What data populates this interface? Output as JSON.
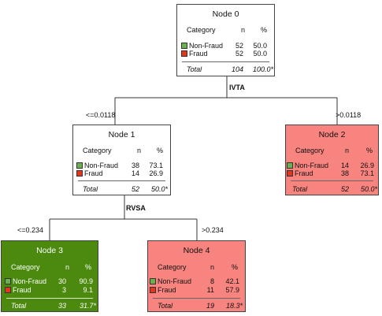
{
  "tree": {
    "header": {
      "category": "Category",
      "n": "n",
      "pct": "%"
    },
    "total_label": "Total",
    "colors": {
      "non_fraud": "#6ab04c",
      "fraud": "#e8341c",
      "node_white": "#ffffff",
      "node_red": "#f88480",
      "node_green": "#4b8a0e"
    },
    "nodes": [
      {
        "title": "Node 0",
        "rows": [
          {
            "category": "Non-Fraud",
            "n": "52",
            "pct": "50.0"
          },
          {
            "category": "Fraud",
            "n": "52",
            "pct": "50.0"
          }
        ],
        "total": {
          "n": "104",
          "pct": "100.0*"
        }
      },
      {
        "title": "Node 1",
        "rows": [
          {
            "category": "Non-Fraud",
            "n": "38",
            "pct": "73.1"
          },
          {
            "category": "Fraud",
            "n": "14",
            "pct": "26.9"
          }
        ],
        "total": {
          "n": "52",
          "pct": "50.0*"
        }
      },
      {
        "title": "Node 2",
        "rows": [
          {
            "category": "Non-Fraud",
            "n": "14",
            "pct": "26.9"
          },
          {
            "category": "Fraud",
            "n": "38",
            "pct": "73.1"
          }
        ],
        "total": {
          "n": "52",
          "pct": "50.0*"
        }
      },
      {
        "title": "Node 3",
        "rows": [
          {
            "category": "Non-Fraud",
            "n": "30",
            "pct": "90.9"
          },
          {
            "category": "Fraud",
            "n": "3",
            "pct": "9.1"
          }
        ],
        "total": {
          "n": "33",
          "pct": "31.7*"
        }
      },
      {
        "title": "Node 4",
        "rows": [
          {
            "category": "Non-Fraud",
            "n": "8",
            "pct": "42.1"
          },
          {
            "category": "Fraud",
            "n": "11",
            "pct": "57.9"
          }
        ],
        "total": {
          "n": "19",
          "pct": "18.3*"
        }
      }
    ],
    "splits": [
      {
        "variable": "IVTA",
        "left_label": "<=0.0118",
        "right_label": ">0.0118"
      },
      {
        "variable": "RVSA",
        "left_label": "<=0.234",
        "right_label": ">0.234"
      }
    ]
  }
}
